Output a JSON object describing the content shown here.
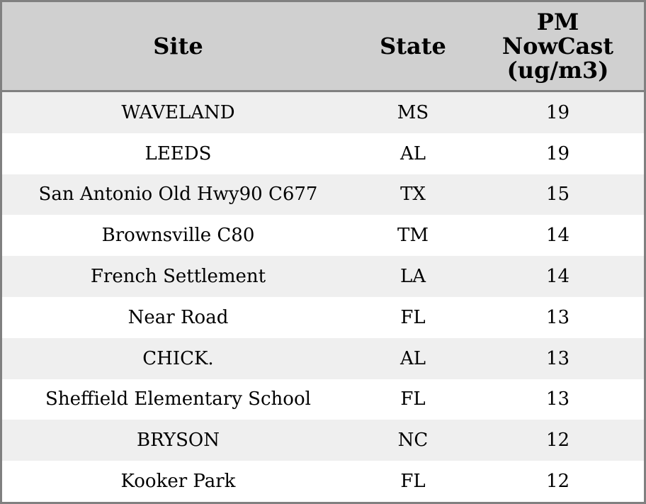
{
  "table": {
    "columns": [
      "Site",
      "State",
      "PM NowCast (ug/m3)"
    ],
    "rows": [
      [
        "WAVELAND",
        "MS",
        19
      ],
      [
        "LEEDS",
        "AL",
        19
      ],
      [
        "San Antonio Old Hwy90 C677",
        "TX",
        15
      ],
      [
        "Brownsville C80",
        "TM",
        14
      ],
      [
        "French Settlement",
        "LA",
        14
      ],
      [
        "Near Road",
        "FL",
        13
      ],
      [
        "CHICK.",
        "AL",
        13
      ],
      [
        "Sheffield Elementary School",
        "FL",
        13
      ],
      [
        "BRYSON",
        "NC",
        12
      ],
      [
        "Kooker Park",
        "FL",
        12
      ]
    ]
  }
}
